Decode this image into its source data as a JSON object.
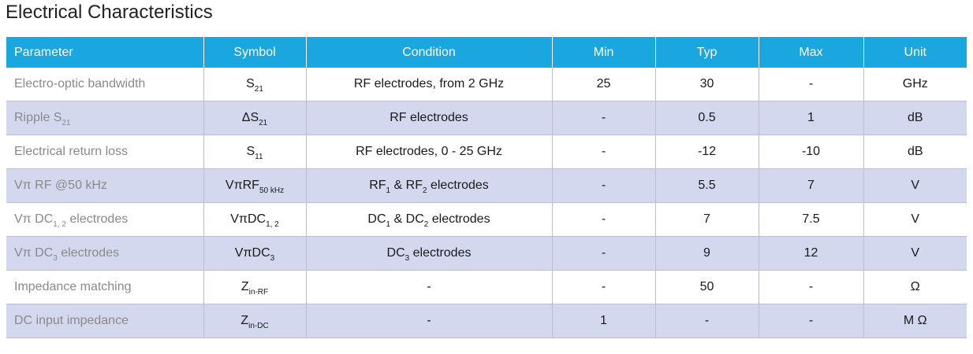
{
  "title": "Electrical Characteristics",
  "headers": [
    "Parameter",
    "Symbol",
    "Condition",
    "Min",
    "Typ",
    "Max",
    "Unit"
  ],
  "rows": [
    {
      "parameter": {
        "main": "Electro-optic bandwidth",
        "sub": "",
        "post": ""
      },
      "symbol": {
        "main": "S",
        "sub": "21"
      },
      "condition": {
        "a": "RF electrodes, from 2 GHz",
        "a_sub": "",
        "b": "",
        "b_sub": "",
        "c": ""
      },
      "min": "25",
      "typ": "30",
      "max": "-",
      "unit": "GHz"
    },
    {
      "parameter": {
        "main": "Ripple S",
        "sub": "21",
        "post": ""
      },
      "symbol": {
        "main": "ΔS",
        "sub": "21"
      },
      "condition": {
        "a": "RF electrodes",
        "a_sub": "",
        "b": "",
        "b_sub": "",
        "c": ""
      },
      "min": "-",
      "typ": "0.5",
      "max": "1",
      "unit": "dB"
    },
    {
      "parameter": {
        "main": "Electrical return loss",
        "sub": "",
        "post": ""
      },
      "symbol": {
        "main": "S",
        "sub": "11"
      },
      "condition": {
        "a": "RF electrodes, 0 - 25 GHz",
        "a_sub": "",
        "b": "",
        "b_sub": "",
        "c": ""
      },
      "min": "-",
      "typ": "-12",
      "max": "-10",
      "unit": "dB"
    },
    {
      "parameter": {
        "main": "Vπ RF @50 kHz",
        "sub": "",
        "post": ""
      },
      "symbol": {
        "main": "VπRF",
        "sub": "50 kHz"
      },
      "condition": {
        "a": "RF",
        "a_sub": "1",
        "b": " & RF",
        "b_sub": "2",
        "c": " electrodes"
      },
      "min": "-",
      "typ": "5.5",
      "max": "7",
      "unit": "V"
    },
    {
      "parameter": {
        "main": "Vπ DC",
        "sub": "1, 2",
        "post": " electrodes"
      },
      "symbol": {
        "main": "VπDC",
        "sub": "1, 2"
      },
      "condition": {
        "a": "DC",
        "a_sub": "1",
        "b": " & DC",
        "b_sub": "2",
        "c": " electrodes"
      },
      "min": "-",
      "typ": "7",
      "max": "7.5",
      "unit": "V"
    },
    {
      "parameter": {
        "main": "Vπ DC",
        "sub": "3",
        "post": " electrodes"
      },
      "symbol": {
        "main": "VπDC",
        "sub": "3"
      },
      "condition": {
        "a": "DC",
        "a_sub": "3",
        "b": " electrodes",
        "b_sub": "",
        "c": ""
      },
      "min": "-",
      "typ": "9",
      "max": "12",
      "unit": "V"
    },
    {
      "parameter": {
        "main": "Impedance matching",
        "sub": "",
        "post": ""
      },
      "symbol": {
        "main": "Z",
        "sub": "in-RF"
      },
      "condition": {
        "a": "-",
        "a_sub": "",
        "b": "",
        "b_sub": "",
        "c": ""
      },
      "min": "-",
      "typ": "50",
      "max": "-",
      "unit": "Ω"
    },
    {
      "parameter": {
        "main": "DC input impedance",
        "sub": "",
        "post": ""
      },
      "symbol": {
        "main": "Z",
        "sub": "in-DC"
      },
      "condition": {
        "a": "-",
        "a_sub": "",
        "b": "",
        "b_sub": "",
        "c": ""
      },
      "min": "1",
      "typ": "-",
      "max": "-",
      "unit": "M Ω"
    }
  ]
}
